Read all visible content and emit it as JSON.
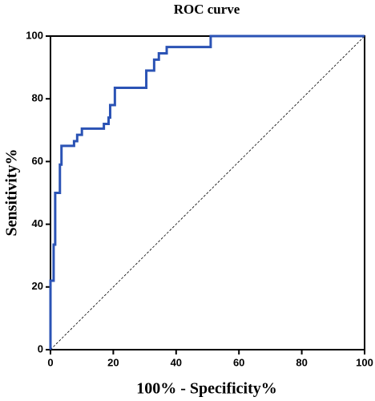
{
  "chart_data": {
    "type": "line",
    "title": "ROC curve",
    "xlabel": "100% - Specificity%",
    "ylabel": "Sensitivity%",
    "xlim": [
      0,
      100
    ],
    "ylim": [
      0,
      100
    ],
    "xticks": [
      0,
      20,
      40,
      60,
      80,
      100
    ],
    "yticks": [
      0,
      20,
      40,
      60,
      80,
      100
    ],
    "series": [
      {
        "color": "#2b53b5",
        "x": [
          0,
          0,
          1,
          1,
          1.5,
          1.5,
          3,
          3,
          3.5,
          3.5,
          7.5,
          7.5,
          8.5,
          8.5,
          10,
          10,
          17,
          17,
          18.5,
          18.5,
          19,
          19,
          20.5,
          20.5,
          30.5,
          30.5,
          33,
          33,
          34.5,
          34.5,
          37,
          37,
          51,
          51,
          100
        ],
        "values": [
          0,
          22,
          22,
          33.5,
          33.5,
          50,
          50,
          59,
          59,
          65,
          65,
          66.5,
          66.5,
          68.5,
          68.5,
          70.5,
          70.5,
          72,
          72,
          74,
          74,
          78,
          78,
          83.5,
          83.5,
          89,
          89,
          92.5,
          92.5,
          94.5,
          94.5,
          96.5,
          96.5,
          100,
          100
        ]
      }
    ]
  }
}
